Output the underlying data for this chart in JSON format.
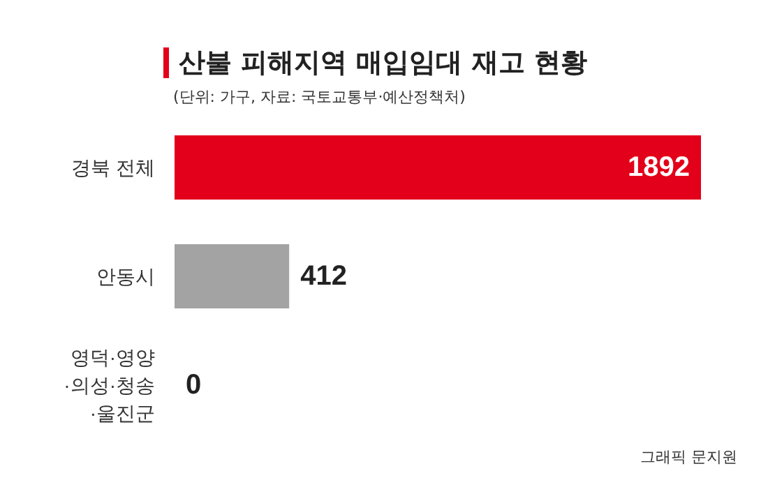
{
  "chart_data": {
    "type": "bar",
    "orientation": "horizontal",
    "title": "산불 피해지역 매입임대 재고 현황",
    "subtitle": "(단위: 가구, 자료: 국토교통부·예산정책처)",
    "categories": [
      "경북 전체",
      "안동시",
      "영덕·영양·의성·청송·울진군"
    ],
    "values": [
      1892,
      412,
      0
    ],
    "colors": [
      "#e2001a",
      "#a3a3a3",
      "#a3a3a3"
    ],
    "data_labels": true,
    "annotations": [
      "그래픽 문지원"
    ]
  }
}
